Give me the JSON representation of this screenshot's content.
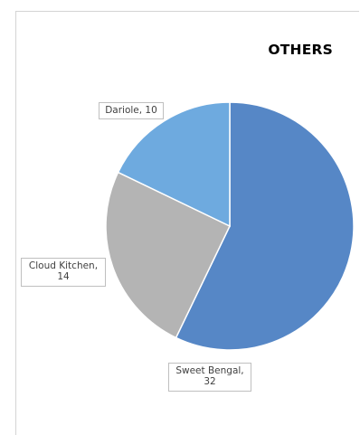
{
  "chart_data": {
    "type": "pie",
    "title": "OTHERS",
    "slices": [
      {
        "name": "Sweet Bengal",
        "value": 32,
        "color": "#5687c6",
        "label_lines": [
          "Sweet Bengal,",
          "32"
        ]
      },
      {
        "name": "Cloud Kitchen",
        "value": 14,
        "color": "#b4b4b4",
        "label_lines": [
          "Cloud Kitchen,",
          "14"
        ]
      },
      {
        "name": "Dariole",
        "value": 10,
        "color": "#6eaadf",
        "label_lines": [
          "Dariole, 10"
        ]
      }
    ],
    "start_angle": "12 o'clock",
    "direction": "clockwise",
    "data_labels": "category name and value"
  }
}
